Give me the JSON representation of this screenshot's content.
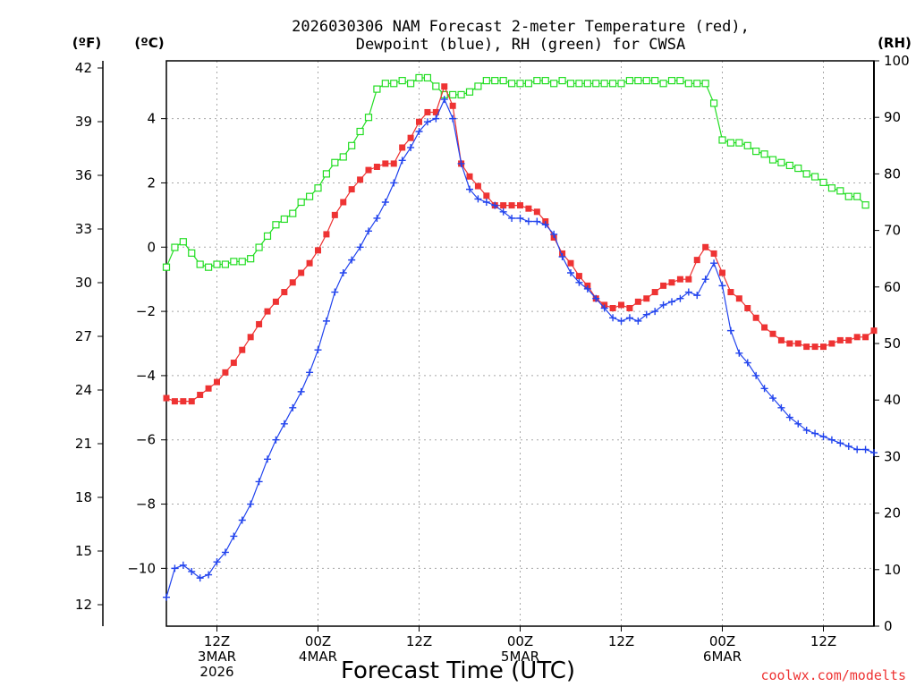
{
  "chart_data": {
    "type": "line",
    "title_line1": "2026030306 NAM Forecast 2-meter Temperature (red),",
    "title_line2": "Dewpoint (blue), RH (green) for CWSA",
    "xlabel": "Forecast Time (UTC)",
    "credit": "coolwx.com/modelts",
    "units": {
      "fahrenheit": "(ºF)",
      "celsius": "(ºC)",
      "rh": "(RH)"
    },
    "x_range_hours": [
      0,
      84
    ],
    "x_ticks": [
      {
        "hour": 6,
        "line1": "12Z",
        "line2": "3MAR",
        "line3": "2026"
      },
      {
        "hour": 18,
        "line1": "00Z",
        "line2": "4MAR",
        "line3": ""
      },
      {
        "hour": 30,
        "line1": "12Z",
        "line2": "",
        "line3": ""
      },
      {
        "hour": 42,
        "line1": "00Z",
        "line2": "5MAR",
        "line3": ""
      },
      {
        "hour": 54,
        "line1": "12Z",
        "line2": "",
        "line3": ""
      },
      {
        "hour": 66,
        "line1": "00Z",
        "line2": "6MAR",
        "line3": ""
      },
      {
        "hour": 78,
        "line1": "12Z",
        "line2": "",
        "line3": ""
      }
    ],
    "celsius_axis": {
      "range": [
        -11.8,
        5.8
      ],
      "ticks": [
        "4",
        "2",
        "0",
        "−2",
        "−4",
        "−6",
        "−8",
        "−10"
      ]
    },
    "fahrenheit_axis": {
      "range": [
        10.8,
        42.4
      ],
      "ticks": [
        "42",
        "39",
        "36",
        "33",
        "30",
        "27",
        "24",
        "21",
        "18",
        "15",
        "12"
      ]
    },
    "rh_axis": {
      "range": [
        0,
        100
      ],
      "ticks": [
        "100",
        "90",
        "80",
        "70",
        "60",
        "50",
        "40",
        "30",
        "20",
        "10",
        "0"
      ]
    },
    "series": [
      {
        "name": "Temperature",
        "unit": "C",
        "color": "#ee3333",
        "marker": "filled-square",
        "values": [
          -4.7,
          -4.8,
          -4.8,
          -4.8,
          -4.6,
          -4.4,
          -4.2,
          -3.9,
          -3.6,
          -3.2,
          -2.8,
          -2.4,
          -2.0,
          -1.7,
          -1.4,
          -1.1,
          -0.8,
          -0.5,
          -0.1,
          0.4,
          1.0,
          1.4,
          1.8,
          2.1,
          2.4,
          2.5,
          2.6,
          2.6,
          3.1,
          3.4,
          3.9,
          4.2,
          4.2,
          5.0,
          4.4,
          2.6,
          2.2,
          1.9,
          1.6,
          1.3,
          1.3,
          1.3,
          1.3,
          1.2,
          1.1,
          0.8,
          0.3,
          -0.2,
          -0.5,
          -0.9,
          -1.2,
          -1.6,
          -1.8,
          -1.9,
          -1.8,
          -1.9,
          -1.7,
          -1.6,
          -1.4,
          -1.2,
          -1.1,
          -1.0,
          -1.0,
          -0.4,
          0.0,
          -0.2,
          -0.8,
          -1.4,
          -1.6,
          -1.9,
          -2.2,
          -2.5,
          -2.7,
          -2.9,
          -3.0,
          -3.0,
          -3.1,
          -3.1,
          -3.1,
          -3.0,
          -2.9,
          -2.9,
          -2.8,
          -2.8,
          -2.6
        ]
      },
      {
        "name": "Dewpoint",
        "unit": "C",
        "color": "#2244ee",
        "marker": "plus",
        "values": [
          -10.9,
          -10.0,
          -9.9,
          -10.1,
          -10.3,
          -10.2,
          -9.8,
          -9.5,
          -9.0,
          -8.5,
          -8.0,
          -7.3,
          -6.6,
          -6.0,
          -5.5,
          -5.0,
          -4.5,
          -3.9,
          -3.2,
          -2.3,
          -1.4,
          -0.8,
          -0.4,
          0.0,
          0.5,
          0.9,
          1.4,
          2.0,
          2.7,
          3.1,
          3.6,
          3.9,
          4.0,
          4.6,
          4.0,
          2.6,
          1.8,
          1.5,
          1.4,
          1.3,
          1.1,
          0.9,
          0.9,
          0.8,
          0.8,
          0.7,
          0.4,
          -0.3,
          -0.8,
          -1.1,
          -1.3,
          -1.6,
          -1.9,
          -2.2,
          -2.3,
          -2.2,
          -2.3,
          -2.1,
          -2.0,
          -1.8,
          -1.7,
          -1.6,
          -1.4,
          -1.5,
          -1.0,
          -0.5,
          -1.2,
          -2.6,
          -3.3,
          -3.6,
          -4.0,
          -4.4,
          -4.7,
          -5.0,
          -5.3,
          -5.5,
          -5.7,
          -5.8,
          -5.9,
          -6.0,
          -6.1,
          -6.2,
          -6.3,
          -6.3,
          -6.4
        ]
      },
      {
        "name": "RH",
        "unit": "%",
        "color": "#22dd22",
        "marker": "open-square",
        "values": [
          63.5,
          67,
          68,
          66,
          64,
          63.5,
          64,
          64,
          64.5,
          64.5,
          65,
          67,
          69,
          71,
          72,
          73,
          75,
          76,
          77.5,
          80,
          82,
          83,
          85,
          87.5,
          90,
          95,
          96,
          96,
          96.5,
          96,
          97,
          97,
          95.5,
          94,
          94,
          94,
          94.5,
          95.5,
          96.5,
          96.5,
          96.5,
          96,
          96,
          96,
          96.5,
          96.5,
          96,
          96.5,
          96,
          96,
          96,
          96,
          96,
          96,
          96,
          96.5,
          96.5,
          96.5,
          96.5,
          96,
          96.5,
          96.5,
          96,
          96,
          96,
          92.5,
          86,
          85.5,
          85.5,
          85,
          84,
          83.5,
          82.5,
          82,
          81.5,
          81,
          80,
          79.5,
          78.5,
          77.5,
          77,
          76,
          76,
          74.5
        ]
      }
    ]
  }
}
